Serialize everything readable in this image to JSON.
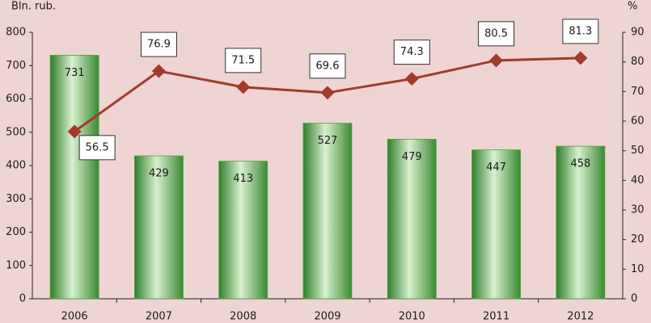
{
  "chart_data": {
    "type": "combo",
    "y_label": "Bln. rub.",
    "y2_label": "%",
    "categories": [
      "2006",
      "2007",
      "2008",
      "2009",
      "2010",
      "2011",
      "2012"
    ],
    "series": [
      {
        "type": "bar",
        "color": "#4fa043",
        "values": [
          731,
          429,
          413,
          527,
          479,
          447,
          458
        ]
      },
      {
        "type": "line",
        "axis": "y2",
        "color": "#a33a2a",
        "values": [
          56.5,
          76.9,
          71.5,
          69.6,
          74.3,
          80.5,
          81.3
        ]
      }
    ],
    "ylim": [
      0,
      800
    ],
    "yticks": [
      0,
      100,
      200,
      300,
      400,
      500,
      600,
      700,
      800
    ],
    "y2lim": [
      0,
      90
    ],
    "y2ticks": [
      0,
      10,
      20,
      30,
      40,
      50,
      60,
      70,
      80,
      90
    ]
  }
}
